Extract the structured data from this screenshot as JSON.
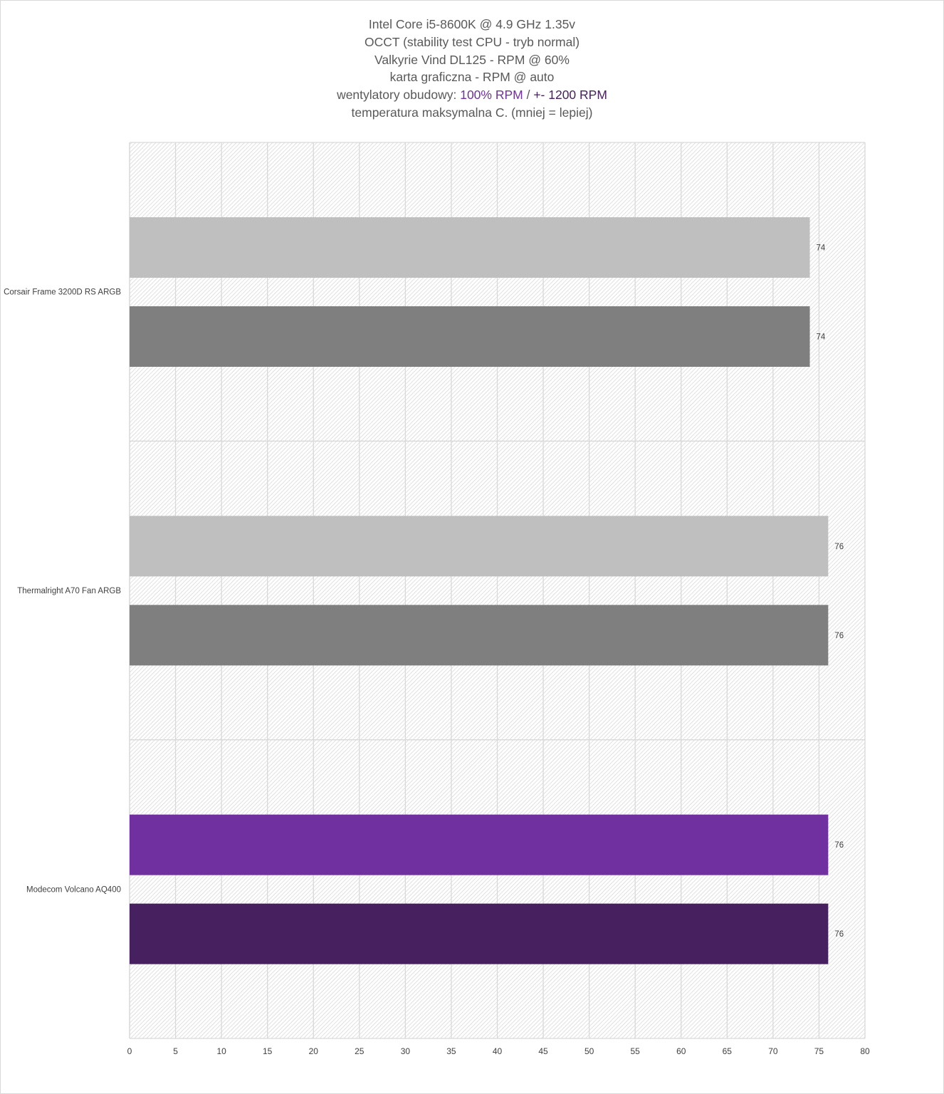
{
  "chart_data": {
    "type": "bar",
    "orientation": "horizontal",
    "title_lines": [
      "Intel Core i5-8600K @ 4.9 GHz 1.35v",
      "OCCT (stability test CPU - tryb normal)",
      "Valkyrie Vind DL125 - RPM @ 60%",
      "karta graficzna - RPM @ auto"
    ],
    "title_line5": {
      "prefix": "wentylatory obudowy: ",
      "part1": "100% RPM",
      "sep": " / ",
      "part2": "+- 1200 RPM"
    },
    "title_line6": "temperatura maksymalna C. (mniej = lepiej)",
    "categories": [
      "Corsair Frame 3200D RS ARGB",
      "Thermalright A70 Fan ARGB",
      "Modecom Volcano AQ400"
    ],
    "series": [
      {
        "values": [
          74,
          76,
          76
        ],
        "colors": [
          "#bfbfbf",
          "#bfbfbf",
          "#7030a0"
        ]
      },
      {
        "values": [
          74,
          76,
          76
        ],
        "colors": [
          "#7f7f7f",
          "#7f7f7f",
          "#472060"
        ]
      }
    ],
    "xlim": [
      0,
      80
    ],
    "xticks": [
      0,
      5,
      10,
      15,
      20,
      25,
      30,
      35,
      40,
      45,
      50,
      55,
      60,
      65,
      70,
      75,
      80
    ],
    "grid": true,
    "legend": "none",
    "data_labels": true,
    "accent_colors": {
      "title_part1": "#7030a0",
      "title_part2": "#472060"
    }
  }
}
